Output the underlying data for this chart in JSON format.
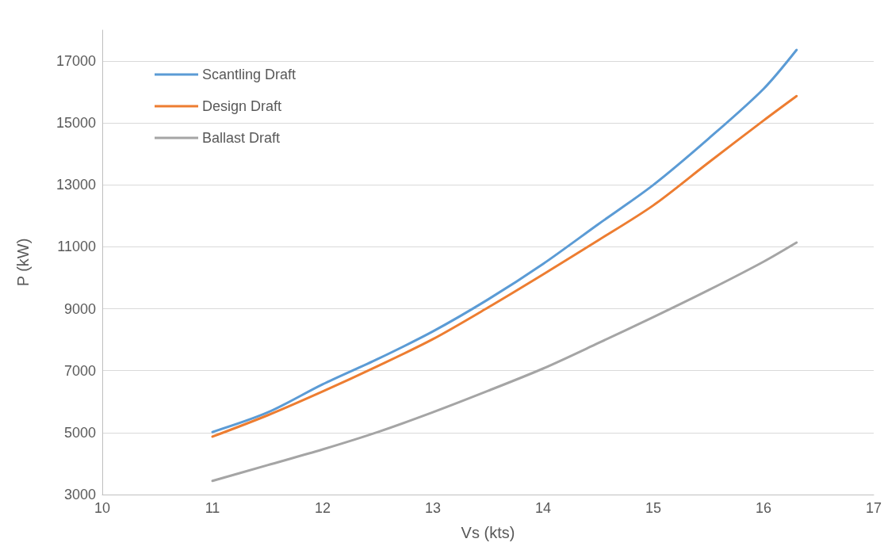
{
  "chart_data": {
    "type": "line",
    "xlabel": "Vs (kts)",
    "ylabel": "P (kW)",
    "xlim": [
      10,
      17
    ],
    "xticks": [
      10,
      11,
      12,
      13,
      14,
      15,
      16,
      17
    ],
    "ylim": [
      3000,
      18000
    ],
    "yticks": [
      3000,
      5000,
      7000,
      9000,
      11000,
      13000,
      15000,
      17000
    ],
    "grid": "y",
    "legend": "top left",
    "marker": "none",
    "line_style": "solid",
    "x": [
      11,
      11.5,
      12,
      12.5,
      13,
      13.5,
      14,
      14.5,
      15,
      15.5,
      16,
      16.3
    ],
    "series": [
      {
        "name": "Scantling Draft",
        "color": "#5b9bd5",
        "values": [
          5020,
          5650,
          6560,
          7380,
          8270,
          9300,
          10450,
          11730,
          13000,
          14490,
          16100,
          17360
        ]
      },
      {
        "name": "Design Draft",
        "color": "#ed7d31",
        "values": [
          4870,
          5560,
          6330,
          7150,
          8020,
          9040,
          10110,
          11210,
          12340,
          13720,
          15080,
          15870
        ]
      },
      {
        "name": "Ballast Draft",
        "color": "#a5a5a5",
        "values": [
          3440,
          3950,
          4460,
          5020,
          5660,
          6350,
          7070,
          7890,
          8730,
          9600,
          10520,
          11140
        ]
      }
    ]
  }
}
